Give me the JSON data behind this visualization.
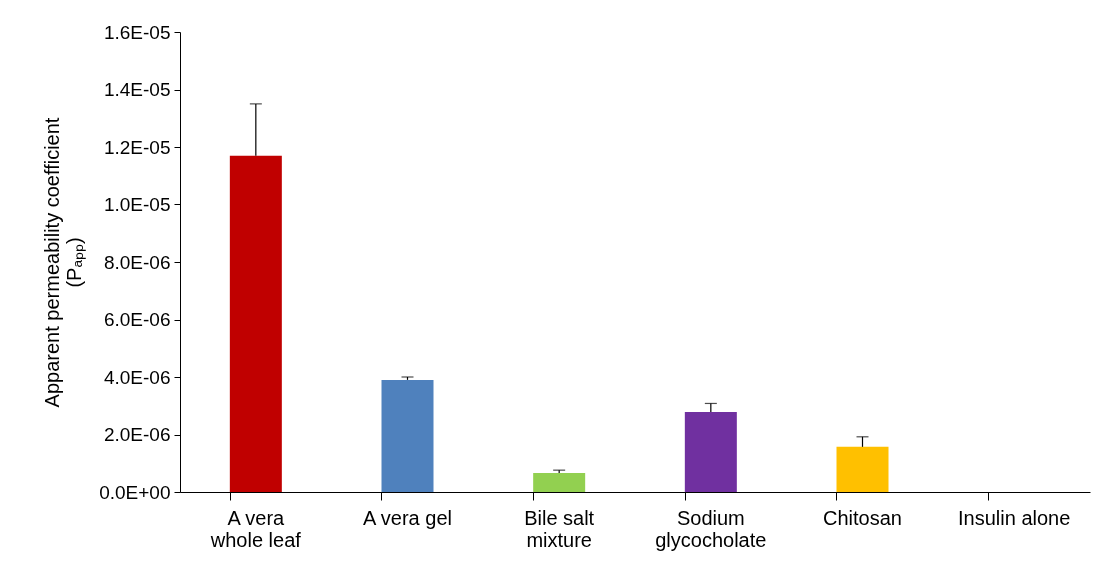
{
  "chart_data": {
    "type": "bar",
    "ylabel": "Apparent permeability coefficient (Pₐₚₚ)",
    "categories": [
      "A vera whole leaf",
      "A vera gel",
      "Bile salt mixture",
      "Sodium glycocholate",
      "Chitosan",
      "Insulin alone"
    ],
    "values": [
      1.17e-05,
      3.9e-06,
      6.6e-07,
      2.78e-06,
      1.57e-06,
      0
    ],
    "colors": [
      "#c00000",
      "#4f81bd",
      "#92d050",
      "#7030a0",
      "#ffc000",
      null
    ],
    "errors": [
      [
        1.17e-05,
        1.35e-05
      ],
      [
        3.9e-06,
        4e-06
      ],
      [
        6.6e-07,
        7.6e-07
      ],
      [
        2.78e-06,
        3.08e-06
      ],
      [
        1.57e-06,
        1.92e-06
      ],
      null
    ],
    "ylim": [
      0,
      1.6e-05
    ],
    "yticks": [
      {
        "value": 0,
        "label": "0.0E+00"
      },
      {
        "value": 2e-06,
        "label": "2.0E-06"
      },
      {
        "value": 4e-06,
        "label": "4.0E-06"
      },
      {
        "value": 6e-06,
        "label": "6.0E-06"
      },
      {
        "value": 8e-06,
        "label": "8.0E-06"
      },
      {
        "value": 1e-05,
        "label": "1.0E-05"
      },
      {
        "value": 1.2e-05,
        "label": "1.2E-05"
      },
      {
        "value": 1.4e-05,
        "label": "1.4E-05"
      },
      {
        "value": 1.6e-05,
        "label": "1.6E-05"
      }
    ],
    "grid": false
  }
}
